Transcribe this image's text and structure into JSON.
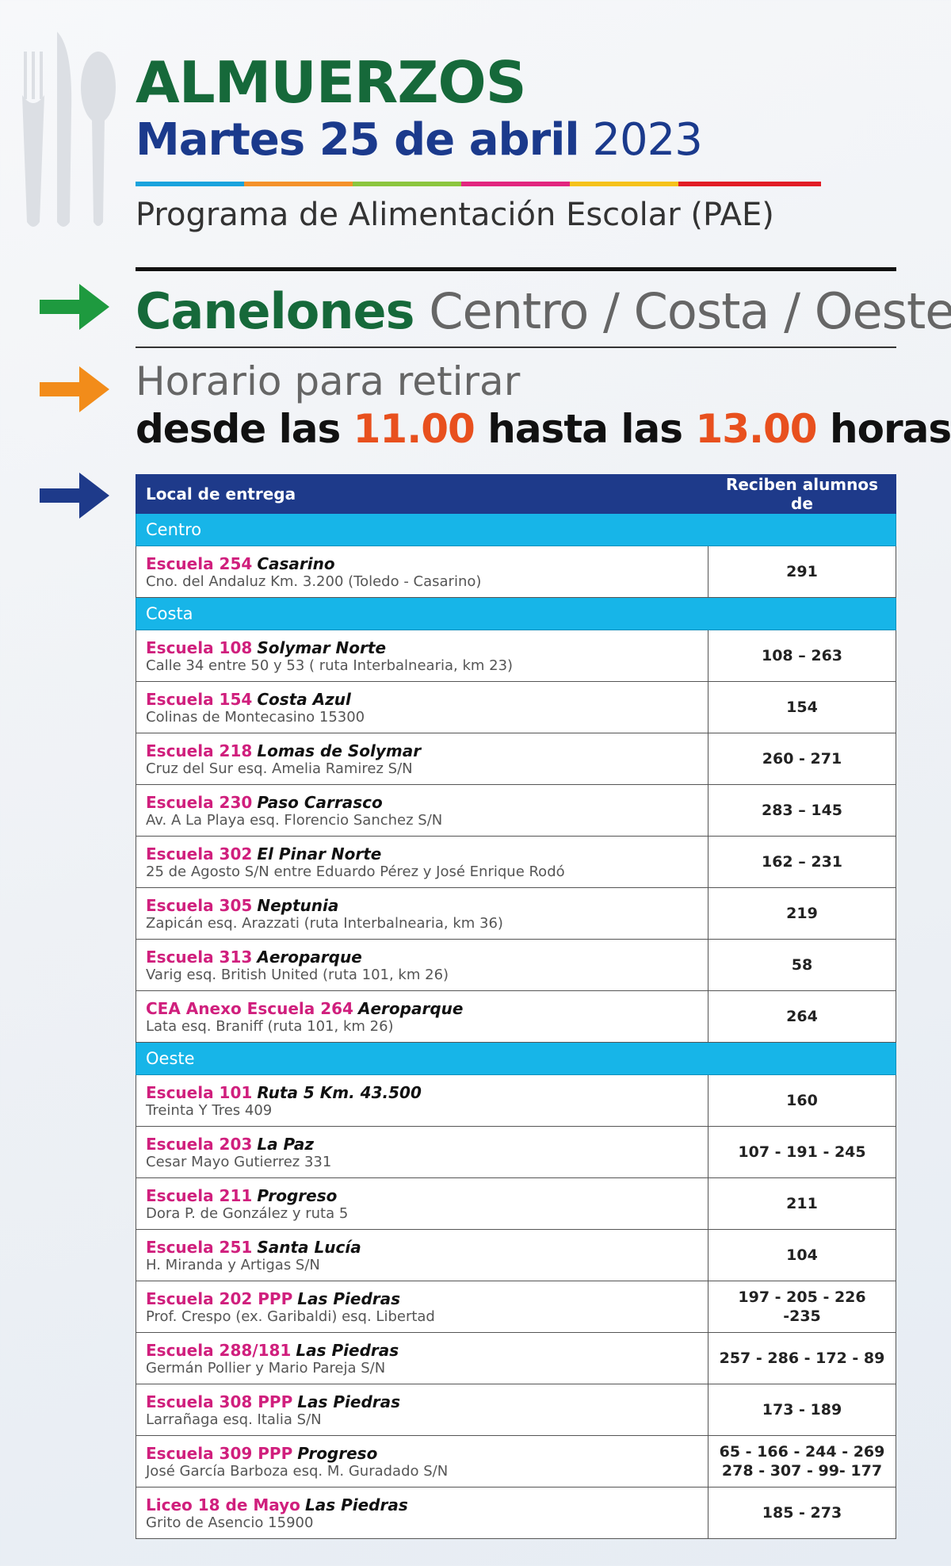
{
  "header": {
    "title": "ALMUERZOS",
    "date": "Martes 25 de abril",
    "year": "2023",
    "program": "Programa de Alimentación Escolar (PAE)"
  },
  "region": {
    "name": "Canelones",
    "zones": "Centro / Costa / Oeste"
  },
  "schedule": {
    "label": "Horario para retirar",
    "prefix": "desde las",
    "start": "11.00",
    "middle": "hasta las",
    "end": "13.00",
    "suffix": "horas"
  },
  "table": {
    "headers": [
      "Local de entrega",
      "Reciben alumnos  de"
    ],
    "sections": [
      {
        "name": "Centro",
        "rows": [
          {
            "school": "Escuela 254",
            "place": "Casarino",
            "address": "Cno. del Andaluz Km. 3.200 (Toledo - Casarino)",
            "students": [
              "291"
            ]
          }
        ]
      },
      {
        "name": "Costa",
        "rows": [
          {
            "school": "Escuela 108",
            "place": "Solymar Norte",
            "address": "Calle 34 entre 50 y 53 ( ruta Interbalnearia, km 23)",
            "students": [
              "108 – 263"
            ]
          },
          {
            "school": "Escuela 154",
            "place": "Costa Azul",
            "address": "Colinas de Montecasino 15300",
            "students": [
              "154"
            ]
          },
          {
            "school": "Escuela 218",
            "place": "Lomas de Solymar",
            "address": "Cruz del Sur esq. Amelia Ramirez S/N",
            "students": [
              "260 - 271"
            ]
          },
          {
            "school": "Escuela 230",
            "place": "Paso Carrasco",
            "address": "Av.  A La Playa esq. Florencio Sanchez S/N",
            "students": [
              "283 – 145"
            ]
          },
          {
            "school": "Escuela 302",
            "place": "El Pinar Norte",
            "address": "25 de Agosto S/N entre Eduardo Pérez y José Enrique Rodó",
            "students": [
              "162 – 231"
            ]
          },
          {
            "school": "Escuela 305",
            "place": "Neptunia",
            "address": "Zapicán esq. Arazzati (ruta Interbalnearia, km 36)",
            "students": [
              "219"
            ]
          },
          {
            "school": "Escuela 313",
            "place": "Aeroparque",
            "address": "Varig esq. British United (ruta 101, km 26)",
            "students": [
              "58"
            ]
          },
          {
            "school": "CEA Anexo Escuela 264",
            "place": "Aeroparque",
            "address": "Lata esq. Braniff (ruta 101, km 26)",
            "students": [
              "264"
            ]
          }
        ]
      },
      {
        "name": "Oeste",
        "rows": [
          {
            "school": "Escuela 101",
            "place": "Ruta 5 Km. 43.500",
            "address": "Treinta Y Tres 409",
            "students": [
              "160"
            ]
          },
          {
            "school": "Escuela 203",
            "place": "La Paz",
            "address": "Cesar Mayo Gutierrez 331",
            "students": [
              "107 - 191 - 245"
            ]
          },
          {
            "school": "Escuela 211",
            "place": "Progreso",
            "address": "Dora P. de González y ruta 5",
            "students": [
              "211"
            ]
          },
          {
            "school": "Escuela 251",
            "place": "Santa Lucía",
            "address": "H. Miranda y Artigas S/N",
            "students": [
              "104"
            ]
          },
          {
            "school": "Escuela 202  PPP",
            "place": "Las Piedras",
            "address": "Prof. Crespo (ex. Garibaldi) esq. Libertad",
            "students": [
              "197 - 205 - 226 -235"
            ]
          },
          {
            "school": "Escuela 288/181",
            "place": "Las Piedras",
            "address": "Germán Pollier y Mario Pareja S/N",
            "students": [
              "257 - 286 - 172 - 89"
            ]
          },
          {
            "school": "Escuela 308 PPP",
            "place": "Las Piedras",
            "address": "Larrañaga esq. Italia S/N",
            "students": [
              "173 - 189"
            ]
          },
          {
            "school": "Escuela 309 PPP",
            "place": "Progreso",
            "address": "José García Barboza esq. M. Guradado S/N",
            "students": [
              "65 - 166 - 244 - 269",
              "278 - 307 - 99- 177"
            ]
          },
          {
            "school": "Liceo 18 de Mayo",
            "place": "Las Piedras",
            "address": "Grito de Asencio 15900",
            "students": [
              "185 - 273"
            ]
          }
        ]
      }
    ]
  }
}
